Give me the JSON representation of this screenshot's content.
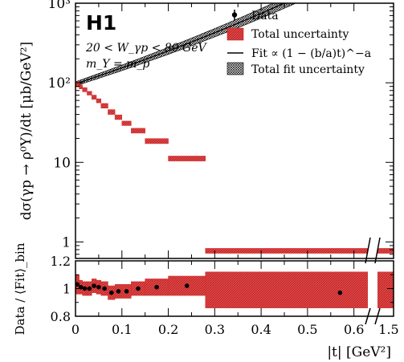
{
  "chart_data": {
    "type": "scatter",
    "experiment": "H1",
    "annotation_lines": [
      "20 < W_γp < 80 GeV",
      "m_Y = m_p"
    ],
    "ylabel": "dσ(γp → ρ⁰Y)/dt  [μb/GeV²]",
    "xlabel": "|t|  [GeV²]",
    "ratio_ylabel": "Data / ⟨Fit⟩_bin",
    "y_scale": "log",
    "ylim": [
      0.62,
      1000
    ],
    "ratio_ylim": [
      0.8,
      1.2
    ],
    "x_axis_break": {
      "from": 0.63,
      "to": 1.35
    },
    "y_tick_labels": [
      {
        "value": 1,
        "label": "1"
      },
      {
        "value": 10,
        "label": "10"
      },
      {
        "value": 100,
        "label": "10²"
      },
      {
        "value": 1000,
        "label": "10³"
      }
    ],
    "ratio_tick_labels": [
      {
        "value": 0.8,
        "label": "0.8"
      },
      {
        "value": 1.0,
        "label": "1"
      },
      {
        "value": 1.2,
        "label": "1.2"
      }
    ],
    "x_tick_labels": [
      {
        "value": 0,
        "label": "0"
      },
      {
        "value": 0.1,
        "label": "0.1"
      },
      {
        "value": 0.2,
        "label": "0.2"
      },
      {
        "value": 0.3,
        "label": "0.3"
      },
      {
        "value": 0.4,
        "label": "0.4"
      },
      {
        "value": 0.5,
        "label": "0.5"
      },
      {
        "value": 0.6,
        "label": "0.6"
      },
      {
        "value": 1.5,
        "label": "1.5"
      }
    ],
    "legend": {
      "placement": "top-right",
      "entries": [
        {
          "label": "Data",
          "marker": "point"
        },
        {
          "label": "Total uncertainty",
          "marker": "red-box"
        },
        {
          "label": "Fit ∝ (1 − (b/a)t)^−a",
          "marker": "line"
        },
        {
          "label": "Total fit uncertainty",
          "marker": "hatched-box"
        }
      ]
    },
    "fit": {
      "model": "power",
      "a": 8,
      "b": 4.5,
      "norm": 97,
      "band_frac_at_0": 0.06,
      "band_frac_at_max": 0.2,
      "x_range": [
        0,
        0.63
      ]
    },
    "colors": {
      "uncertainty": "#d42a2a",
      "fit_band": "#111111",
      "data": "#000000"
    },
    "bins": [
      {
        "lo": 0.0,
        "hi": 0.008,
        "y": 96,
        "ylo": 89,
        "yhi": 103,
        "ratio": 1.03,
        "rlo": 0.96,
        "rhi": 1.1
      },
      {
        "lo": 0.008,
        "hi": 0.015,
        "y": 89,
        "ylo": 84,
        "yhi": 94,
        "ratio": 1.01,
        "rlo": 0.96,
        "rhi": 1.06
      },
      {
        "lo": 0.015,
        "hi": 0.025,
        "y": 82,
        "ylo": 77,
        "yhi": 87,
        "ratio": 1.0,
        "rlo": 0.95,
        "rhi": 1.05
      },
      {
        "lo": 0.025,
        "hi": 0.035,
        "y": 74,
        "ylo": 70,
        "yhi": 78,
        "ratio": 1.0,
        "rlo": 0.95,
        "rhi": 1.05
      },
      {
        "lo": 0.035,
        "hi": 0.045,
        "y": 66,
        "ylo": 62,
        "yhi": 70,
        "ratio": 1.02,
        "rlo": 0.97,
        "rhi": 1.07
      },
      {
        "lo": 0.045,
        "hi": 0.055,
        "y": 59,
        "ylo": 56,
        "yhi": 63,
        "ratio": 1.01,
        "rlo": 0.96,
        "rhi": 1.06
      },
      {
        "lo": 0.055,
        "hi": 0.07,
        "y": 51,
        "ylo": 48,
        "yhi": 55,
        "ratio": 1.0,
        "rlo": 0.95,
        "rhi": 1.05
      },
      {
        "lo": 0.07,
        "hi": 0.085,
        "y": 43,
        "ylo": 40,
        "yhi": 46,
        "ratio": 0.97,
        "rlo": 0.92,
        "rhi": 1.02
      },
      {
        "lo": 0.085,
        "hi": 0.1,
        "y": 37,
        "ylo": 34.5,
        "yhi": 39.5,
        "ratio": 0.98,
        "rlo": 0.93,
        "rhi": 1.03
      },
      {
        "lo": 0.1,
        "hi": 0.12,
        "y": 31,
        "ylo": 29,
        "yhi": 33,
        "ratio": 0.98,
        "rlo": 0.93,
        "rhi": 1.03
      },
      {
        "lo": 0.12,
        "hi": 0.15,
        "y": 25,
        "ylo": 23.3,
        "yhi": 26.8,
        "ratio": 1.0,
        "rlo": 0.95,
        "rhi": 1.05
      },
      {
        "lo": 0.15,
        "hi": 0.2,
        "y": 18.5,
        "ylo": 17.2,
        "yhi": 19.9,
        "ratio": 1.01,
        "rlo": 0.95,
        "rhi": 1.07
      },
      {
        "lo": 0.2,
        "hi": 0.28,
        "y": 11.2,
        "ylo": 10.4,
        "yhi": 12.0,
        "ratio": 1.02,
        "rlo": 0.95,
        "rhi": 1.09
      },
      {
        "lo": 0.28,
        "hi": 1.5,
        "y": 0.775,
        "ylo": 0.72,
        "yhi": 0.83,
        "ratio": 0.97,
        "rlo": 0.86,
        "rhi": 1.12
      }
    ]
  }
}
